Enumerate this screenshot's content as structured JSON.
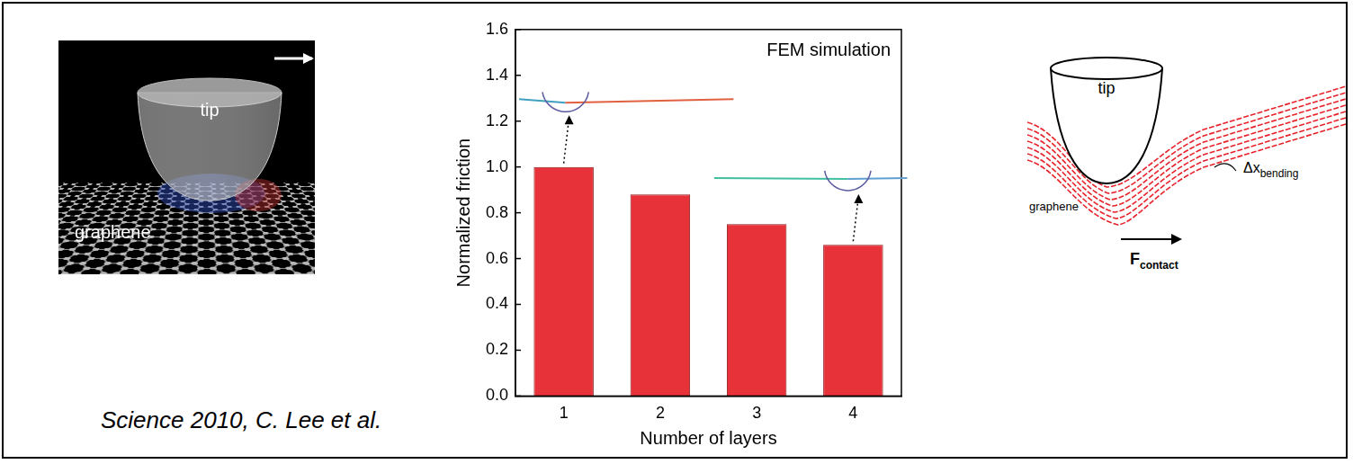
{
  "chart_data": {
    "type": "bar",
    "annotation": "FEM simulation",
    "x_label": "Number of layers",
    "y_label": "Normalized friction",
    "categories": [
      "1",
      "2",
      "3",
      "4"
    ],
    "values": [
      1.0,
      0.88,
      0.75,
      0.66
    ],
    "color": "#e8323a",
    "ylim": [
      0,
      1.6
    ],
    "yticks": [
      {
        "value": 0,
        "label": "0.0"
      },
      {
        "value": 0.2,
        "label": "0.2"
      },
      {
        "value": 0.4,
        "label": "0.4"
      },
      {
        "value": 0.6,
        "label": "0.6"
      },
      {
        "value": 0.8,
        "label": "0.8"
      },
      {
        "value": 1,
        "label": "1.0"
      },
      {
        "value": 1.2,
        "label": "1.2"
      },
      {
        "value": 1.4,
        "label": "1.4"
      },
      {
        "value": 1.6,
        "label": "1.6"
      }
    ],
    "grid": false
  },
  "left_image": {
    "tip": "tip",
    "surface": "graphene"
  },
  "caption": "Science 2010, C. Lee et al.",
  "diagram": {
    "tip": "tip",
    "surface": "graphene",
    "bending": {
      "text": "Δx",
      "subscript": "bending"
    },
    "force": {
      "text": "F",
      "subscript": "contact"
    }
  }
}
